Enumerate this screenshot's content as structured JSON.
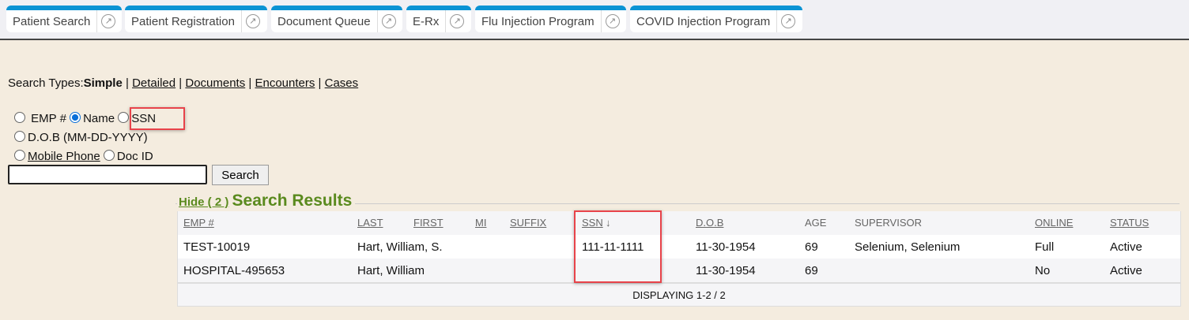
{
  "tabs": [
    {
      "label": "Patient Search"
    },
    {
      "label": "Patient Registration"
    },
    {
      "label": "Document Queue"
    },
    {
      "label": "E-Rx"
    },
    {
      "label": "Flu Injection Program"
    },
    {
      "label": "COVID Injection Program"
    }
  ],
  "search_types": {
    "label": "Search Types:",
    "current": "Simple",
    "links": [
      "Detailed",
      "Documents",
      "Encounters",
      "Cases"
    ],
    "sep": "|"
  },
  "options": {
    "emp": "EMP #",
    "name": "Name",
    "ssn": "SSN",
    "dob": "D.O.B (MM-DD-YYYY)",
    "mobile": "Mobile Phone",
    "docid": "Doc ID",
    "selected": "Name"
  },
  "search": {
    "value": "",
    "button": "Search"
  },
  "results": {
    "hide": "Hide ( 2 )",
    "title": "Search Results",
    "columns": [
      "EMP #",
      "LAST",
      "FIRST",
      "MI",
      "SUFFIX",
      "SSN",
      "D.O.B",
      "AGE",
      "SUPERVISOR",
      "ONLINE",
      "STATUS"
    ],
    "rows": [
      {
        "emp": "TEST-10019",
        "name": "Hart, William, S.",
        "ssn": "111-11-1111",
        "dob": "11-30-1954",
        "age": "69",
        "supervisor": "Selenium, Selenium",
        "online": "Full",
        "status": "Active"
      },
      {
        "emp": "HOSPITAL-495653",
        "name": "Hart, William",
        "ssn": "",
        "dob": "11-30-1954",
        "age": "69",
        "supervisor": "",
        "online": "No",
        "status": "Active"
      }
    ],
    "footer": "DISPLAYING 1-2 / 2"
  },
  "colors": {
    "tab_accent": "#0a93d4",
    "title_green": "#5a8a1e",
    "highlight": "#e8434a"
  }
}
